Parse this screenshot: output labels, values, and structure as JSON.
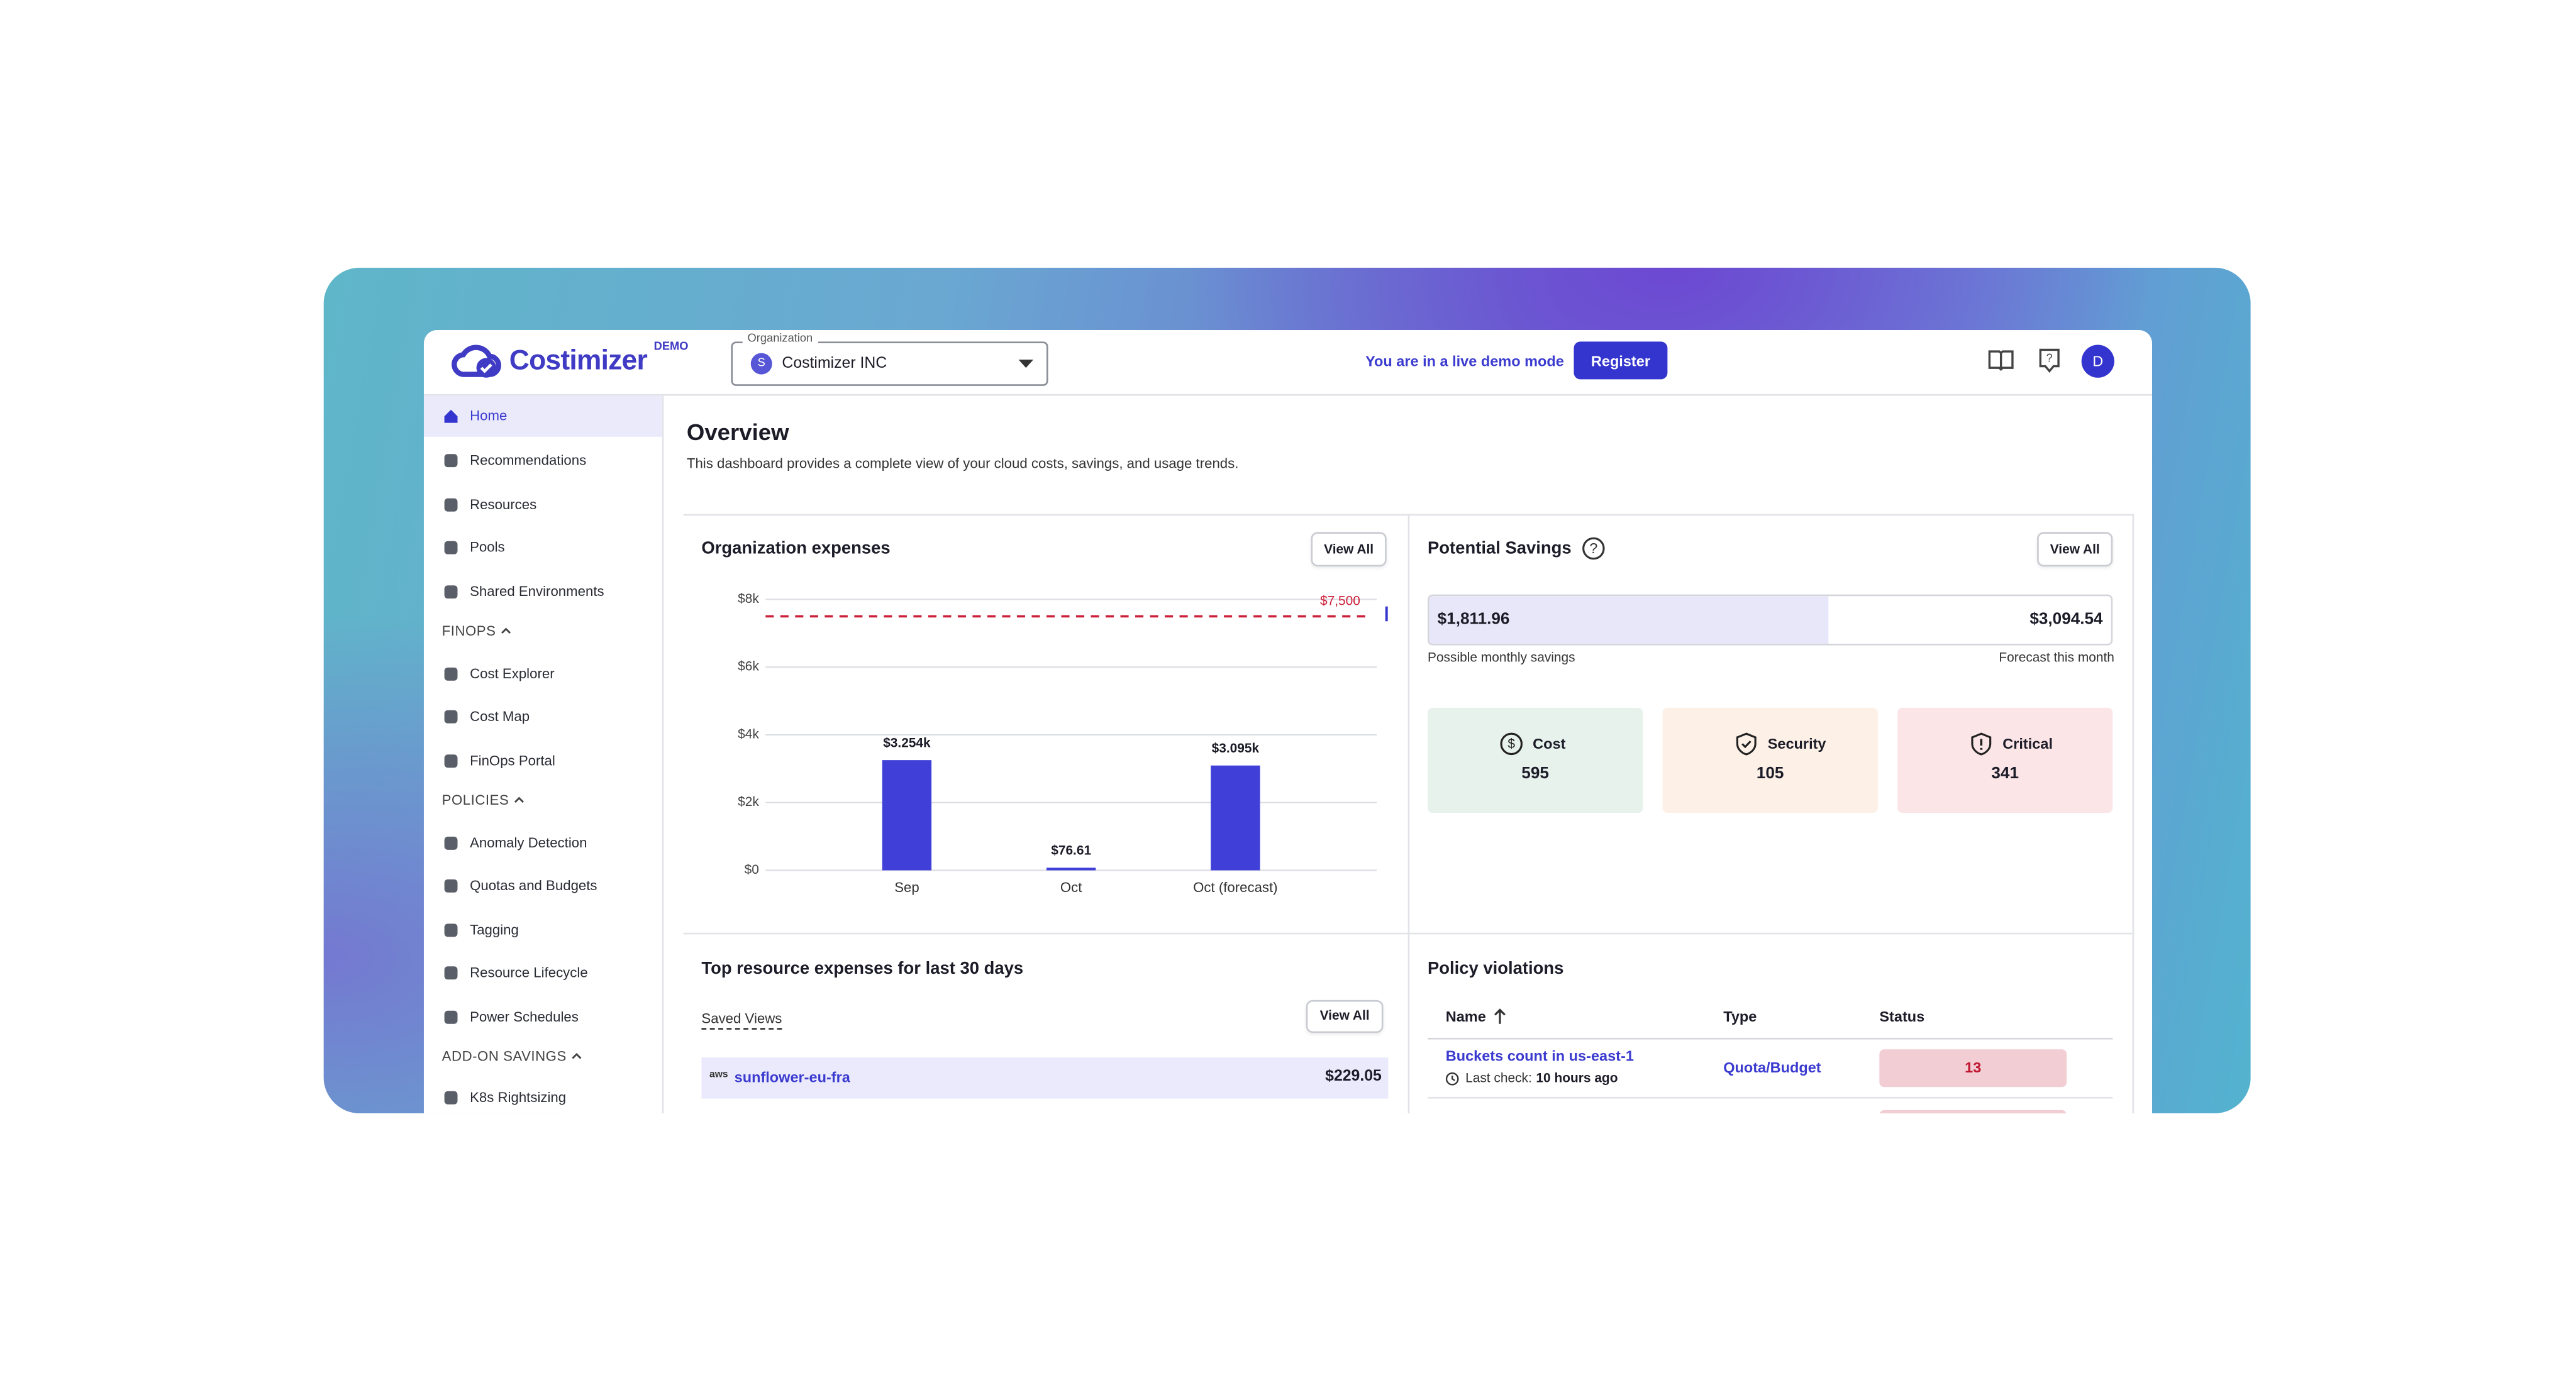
{
  "header": {
    "logo": "Costimizer",
    "badge": "DEMO",
    "org_label": "Organization",
    "org_initial": "S",
    "org_name": "Costimizer INC",
    "demo_text": "You are in a live demo mode",
    "register": "Register",
    "avatar": "D"
  },
  "sidebar": [
    {
      "label": "Home"
    },
    {
      "label": "Recommendations"
    },
    {
      "label": "Resources"
    },
    {
      "label": "Pools"
    },
    {
      "label": "Shared Environments"
    },
    {
      "section": "FINOPS"
    },
    {
      "label": "Cost Explorer"
    },
    {
      "label": "Cost Map"
    },
    {
      "label": "FinOps Portal"
    },
    {
      "section": "POLICIES"
    },
    {
      "label": "Anomaly Detection"
    },
    {
      "label": "Quotas and Budgets"
    },
    {
      "label": "Tagging"
    },
    {
      "label": "Resource Lifecycle"
    },
    {
      "label": "Power Schedules"
    },
    {
      "section": "ADD-ON SAVINGS"
    },
    {
      "label": "K8s Rightsizing"
    }
  ],
  "overview": {
    "title": "Overview",
    "subtitle": "This dashboard provides a complete view of your cloud costs, savings, and usage trends."
  },
  "expenses": {
    "title": "Organization expenses",
    "view_all": "View All",
    "chart": {
      "type": "bar",
      "categories": [
        "Sep",
        "Oct",
        "Oct (forecast)"
      ],
      "values": [
        3254,
        76.61,
        3095
      ],
      "value_labels": [
        "$3.254k",
        "$76.61",
        "$3.095k"
      ],
      "color": "#4040d8",
      "ylim": [
        0,
        8000
      ],
      "yticks": [
        {
          "value": 0,
          "label": "$0"
        },
        {
          "value": 2000,
          "label": "$2k"
        },
        {
          "value": 4000,
          "label": "$4k"
        },
        {
          "value": 6000,
          "label": "$6k"
        },
        {
          "value": 8000,
          "label": "$8k"
        }
      ],
      "grid": true,
      "budget": {
        "value": 7500,
        "label": "$7,500"
      }
    }
  },
  "savings": {
    "title": "Potential Savings",
    "view_all": "View All",
    "possible": {
      "value": 1811.96,
      "label": "$1,811.96"
    },
    "forecast": {
      "value": 3094.54,
      "label": "$3,094.54"
    },
    "possible_label": "Possible monthly savings",
    "forecast_label": "Forecast this month",
    "cards": [
      {
        "label": "Cost",
        "value": 595
      },
      {
        "label": "Security",
        "value": 105
      },
      {
        "label": "Critical",
        "value": 341
      }
    ]
  },
  "top_resources": {
    "title": "Top resource expenses for last 30 days",
    "saved_views": "Saved Views",
    "view_all": "View All",
    "rows": [
      {
        "provider": "aws",
        "name": "sunflower-eu-fra",
        "cost": "$229.05"
      }
    ]
  },
  "policies": {
    "title": "Policy violations",
    "columns": [
      "Name",
      "Type",
      "Status"
    ],
    "rows": [
      {
        "name": "Buckets count in us-east-1",
        "check_label": "Last check:",
        "check_time": "10 hours ago",
        "type": "Quota/Budget",
        "status": 13
      }
    ]
  }
}
